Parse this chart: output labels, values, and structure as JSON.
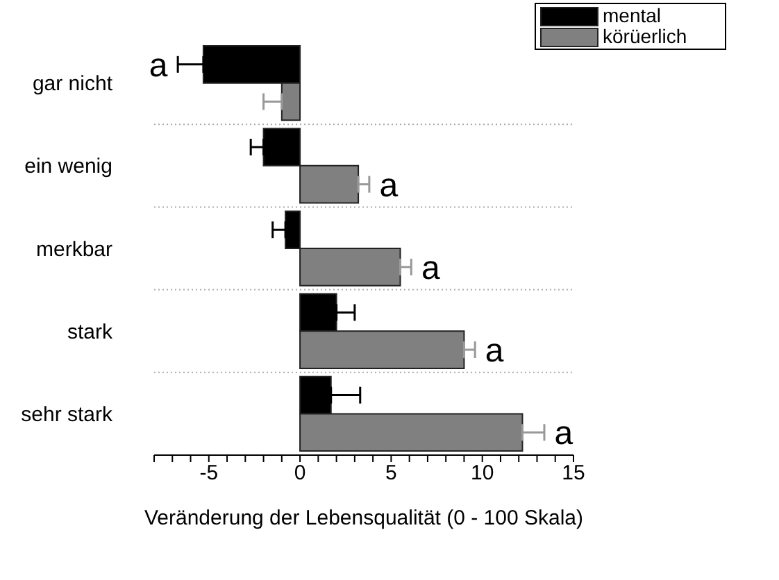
{
  "chart_data": {
    "type": "bar",
    "orientation": "horizontal",
    "xlabel": "Veränderung der Lebensqualität (0 - 100 Skala)",
    "categories": [
      "gar nicht",
      "ein wenig",
      "merkbar",
      "stark",
      "sehr stark"
    ],
    "series": [
      {
        "name": "mental",
        "color": "#000000",
        "values": [
          -5.3,
          -2.0,
          -0.8,
          2.0,
          1.7
        ],
        "errors": [
          [
            -6.7,
            -5.3
          ],
          [
            -2.7,
            -2.0
          ],
          [
            -1.5,
            -0.8
          ],
          [
            2.0,
            3.0
          ],
          [
            1.7,
            3.3
          ]
        ]
      },
      {
        "name": "körüerlich",
        "color": "#808080",
        "values": [
          -1.0,
          3.2,
          5.5,
          9.0,
          12.2
        ],
        "errors": [
          [
            -2.0,
            -1.0
          ],
          [
            3.2,
            3.8
          ],
          [
            5.5,
            6.1
          ],
          [
            9.0,
            9.6
          ],
          [
            12.2,
            13.4
          ]
        ]
      }
    ],
    "xlim": [
      -8,
      15
    ],
    "xticks": [
      {
        "value": -8,
        "label": null
      },
      {
        "value": -7,
        "label": null
      },
      {
        "value": -6,
        "label": null
      },
      -5,
      {
        "value": -4,
        "label": null
      },
      {
        "value": -3,
        "label": null
      },
      {
        "value": -2,
        "label": null
      },
      {
        "value": -1,
        "label": null
      },
      0,
      {
        "value": 1,
        "label": null
      },
      {
        "value": 2,
        "label": null
      },
      {
        "value": 3,
        "label": null
      },
      {
        "value": 4,
        "label": null
      },
      5,
      {
        "value": 6,
        "label": null
      },
      {
        "value": 7,
        "label": null
      },
      {
        "value": 8,
        "label": null
      },
      {
        "value": 9,
        "label": null
      },
      10,
      {
        "value": 11,
        "label": null
      },
      {
        "value": 12,
        "label": null
      },
      {
        "value": 13,
        "label": null
      },
      {
        "value": 14,
        "label": null
      },
      15
    ],
    "grid": "y",
    "legend": "top right",
    "annotations": [
      {
        "text": "a",
        "x": -5.3,
        "y": "gar nicht"
      },
      {
        "text": "a",
        "x": 3.2,
        "y": "ein wenig"
      },
      {
        "text": "a",
        "x": 5.5,
        "y": "merkbar"
      },
      {
        "text": "a",
        "x": 9.0,
        "y": "stark"
      },
      {
        "text": "a",
        "x": 12.2,
        "y": "sehr stark"
      }
    ]
  }
}
